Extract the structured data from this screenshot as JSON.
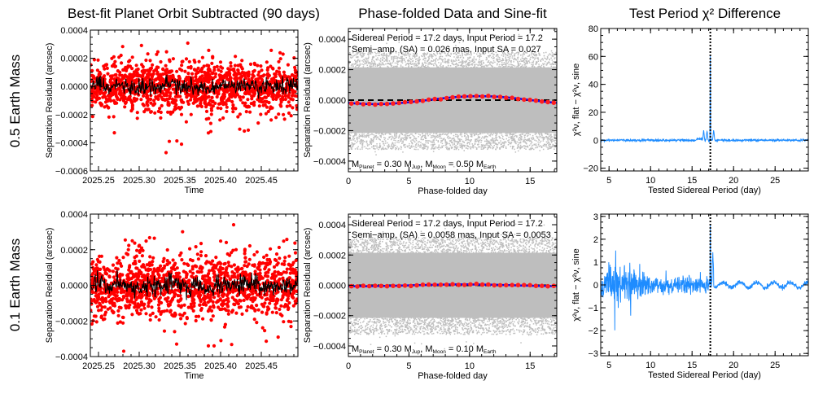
{
  "figure": {
    "row_labels": [
      "0.5 Earth Mass",
      "0.1 Earth Mass"
    ],
    "column_titles": [
      "Best-fit Planet Orbit Subtracted (90 days)",
      "Phase-folded Data and Sine-fit",
      "Test Period χ² Difference"
    ]
  },
  "colors": {
    "residual_points": "#ff0000",
    "residual_line": "#000000",
    "folded_points": "#bebebe",
    "binned_points": "#ff1e1e",
    "sine_fit": "#0000ff",
    "zero_line": "#000000",
    "chi2_curve": "#1e8cff",
    "period_marker": "#000000"
  },
  "chart_data": [
    {
      "type": "scatter",
      "row": 0,
      "col": 0,
      "title": "Best-fit Planet Orbit Subtracted (90 days)",
      "xlabel": "Time",
      "ylabel": "Separation Residual (arcsec)",
      "xlim": [
        2025.24,
        2025.495
      ],
      "ylim": [
        -0.0006,
        0.0004
      ],
      "xticks": [
        2025.25,
        2025.3,
        2025.35,
        2025.4,
        2025.45
      ],
      "xtick_labels": [
        "2025.25",
        "2025.30",
        "2025.35",
        "2025.40",
        "2025.45"
      ],
      "yticks": [
        -0.0006,
        -0.0004,
        -0.0002,
        0.0,
        0.0002,
        0.0004
      ],
      "ytick_labels": [
        "−0.0006",
        "−0.0004",
        "−0.0002",
        "0.0000",
        "0.0002",
        "0.0004"
      ],
      "series": [
        {
          "name": "residuals",
          "style": "red dots",
          "n_points": 1400,
          "sigma": 0.0001,
          "outliers": [
            [
              2025.333,
              -0.00047
            ],
            [
              2025.337,
              -0.00039
            ],
            [
              2025.352,
              -0.00041
            ],
            [
              2025.385,
              -0.00033
            ],
            [
              2025.388,
              -0.00032
            ],
            [
              2025.434,
              -0.00031
            ]
          ]
        },
        {
          "name": "running mean",
          "style": "black line",
          "sigma": 3e-05
        }
      ]
    },
    {
      "type": "scatter",
      "row": 0,
      "col": 1,
      "title": "Phase-folded Data and Sine-fit",
      "xlabel": "Phase-folded day",
      "ylabel": "Separation Residual (arcsec)",
      "xlim": [
        0,
        17.2
      ],
      "ylim": [
        -0.00047,
        0.00047
      ],
      "xticks": [
        0,
        5,
        10,
        15
      ],
      "xtick_labels": [
        "0",
        "5",
        "10",
        "15"
      ],
      "yticks": [
        -0.0004,
        -0.0002,
        0.0,
        0.0002,
        0.0004
      ],
      "ytick_labels": [
        "−0.0004",
        "−0.0002",
        "0.0000",
        "0.0002",
        "0.0004"
      ],
      "annotations": {
        "line1": "Sidereal Period = 17.2 days, Input Period = 17.2",
        "line2": "Semi−amp. (SA) = 0.026 mas, Input SA = 0.027",
        "mass_planet_label": "M",
        "mass_planet_sub": "Planet",
        "mass_planet_value": " = 0.30 M",
        "mass_planet_unit_sub": "Jup",
        "mass_moon_label": ", M",
        "mass_moon_sub": "Moon",
        "mass_moon_value": " = 0.50 M",
        "mass_moon_unit_sub": "Earth"
      },
      "sine_fit": {
        "period": 17.2,
        "amplitude": 2.6e-05,
        "phase_day_of_max": 10.8
      },
      "binned": {
        "n_bins": 35
      },
      "series": [
        {
          "name": "folded data",
          "style": "grey dots",
          "sigma": 0.00013
        },
        {
          "name": "binned means",
          "style": "red dots"
        },
        {
          "name": "sine fit",
          "style": "blue line"
        },
        {
          "name": "zero",
          "style": "black dashed",
          "value": 0
        }
      ]
    },
    {
      "type": "line",
      "row": 0,
      "col": 2,
      "title": "Test Period χ² Difference",
      "xlabel": "Tested Sidereal Period (day)",
      "ylabel": "χ²ν, flat − χ²ν, sine",
      "xlim": [
        4,
        29
      ],
      "ylim": [
        -22,
        80
      ],
      "xticks": [
        5,
        10,
        15,
        20,
        25
      ],
      "xtick_labels": [
        "5",
        "10",
        "15",
        "20",
        "25"
      ],
      "yticks": [
        -20,
        0,
        20,
        40,
        60,
        80
      ],
      "ytick_labels": [
        "−20",
        "0",
        "20",
        "40",
        "60",
        "80"
      ],
      "period_marker": 17.2,
      "peak": {
        "x": 17.2,
        "y": 63
      },
      "side_peaks": [
        [
          16.4,
          7
        ],
        [
          16.8,
          6
        ],
        [
          17.6,
          7
        ]
      ],
      "baseline_noise": 0.4
    },
    {
      "type": "scatter",
      "row": 1,
      "col": 0,
      "title": "",
      "xlabel": "Time",
      "ylabel": "Separation Residual (arcsec)",
      "xlim": [
        2025.24,
        2025.495
      ],
      "ylim": [
        -0.0004,
        0.0004
      ],
      "xticks": [
        2025.25,
        2025.3,
        2025.35,
        2025.4,
        2025.45
      ],
      "xtick_labels": [
        "2025.25",
        "2025.30",
        "2025.35",
        "2025.40",
        "2025.45"
      ],
      "yticks": [
        -0.0004,
        -0.0002,
        0.0,
        0.0002,
        0.0004
      ],
      "ytick_labels": [
        "−0.0004",
        "−0.0002",
        "0.0000",
        "0.0002",
        "0.0004"
      ],
      "series": [
        {
          "name": "residuals",
          "style": "red dots",
          "n_points": 1400,
          "sigma": 0.0001,
          "outliers": [
            [
              2025.281,
              -0.00037
            ],
            [
              2025.346,
              -0.00033
            ],
            [
              2025.385,
              -0.00034
            ],
            [
              2025.392,
              -0.00034
            ],
            [
              2025.416,
              0.00034
            ]
          ]
        },
        {
          "name": "running mean",
          "style": "black line",
          "sigma": 3e-05
        }
      ]
    },
    {
      "type": "scatter",
      "row": 1,
      "col": 1,
      "title": "",
      "xlabel": "Phase-folded day",
      "ylabel": "Separation Residual (arcsec)",
      "xlim": [
        0,
        17.2
      ],
      "ylim": [
        -0.00047,
        0.00047
      ],
      "xticks": [
        0,
        5,
        10,
        15
      ],
      "xtick_labels": [
        "0",
        "5",
        "10",
        "15"
      ],
      "yticks": [
        -0.0004,
        -0.0002,
        0.0,
        0.0002,
        0.0004
      ],
      "ytick_labels": [
        "−0.0004",
        "−0.0002",
        "0.0000",
        "0.0002",
        "0.0004"
      ],
      "annotations": {
        "line1": "Sidereal Period = 17.2 days, Input Period = 17.2",
        "line2": "Semi−amp. (SA) = 0.0058 mas, Input SA = 0.0053",
        "mass_planet_label": "M",
        "mass_planet_sub": "Planet",
        "mass_planet_value": " = 0.30 M",
        "mass_planet_unit_sub": "Jup",
        "mass_moon_label": ", M",
        "mass_moon_sub": "Moon",
        "mass_moon_value": " = 0.10 M",
        "mass_moon_unit_sub": "Earth"
      },
      "sine_fit": {
        "period": 17.2,
        "amplitude": 5.8e-06,
        "phase_day_of_max": 9.5
      },
      "binned": {
        "n_bins": 35
      },
      "series": [
        {
          "name": "folded data",
          "style": "grey dots",
          "sigma": 0.00013
        },
        {
          "name": "binned means",
          "style": "red dots"
        },
        {
          "name": "sine fit",
          "style": "blue line"
        },
        {
          "name": "zero",
          "style": "black dashed",
          "value": 0
        }
      ]
    },
    {
      "type": "line",
      "row": 1,
      "col": 2,
      "title": "",
      "xlabel": "Tested Sidereal Period (day)",
      "ylabel": "χ²ν, flat − χ²ν, sine",
      "xlim": [
        4,
        29
      ],
      "ylim": [
        -3.1,
        3.1
      ],
      "xticks": [
        5,
        10,
        15,
        20,
        25
      ],
      "xtick_labels": [
        "5",
        "10",
        "15",
        "20",
        "25"
      ],
      "yticks": [
        -3,
        -2,
        -1,
        0,
        1,
        2,
        3
      ],
      "ytick_labels": [
        "−3",
        "−2",
        "−1",
        "0",
        "1",
        "2",
        "3"
      ],
      "period_marker": 17.2,
      "peak": {
        "x": 17.2,
        "y": 2.9
      },
      "side_peaks": [
        [
          17.5,
          1.3
        ]
      ],
      "spikes": [
        [
          5.7,
          -2.7
        ],
        [
          7.6,
          -2.4
        ],
        [
          5.1,
          1.5
        ],
        [
          5.8,
          1.7
        ]
      ],
      "baseline_noise": 0.35
    }
  ]
}
